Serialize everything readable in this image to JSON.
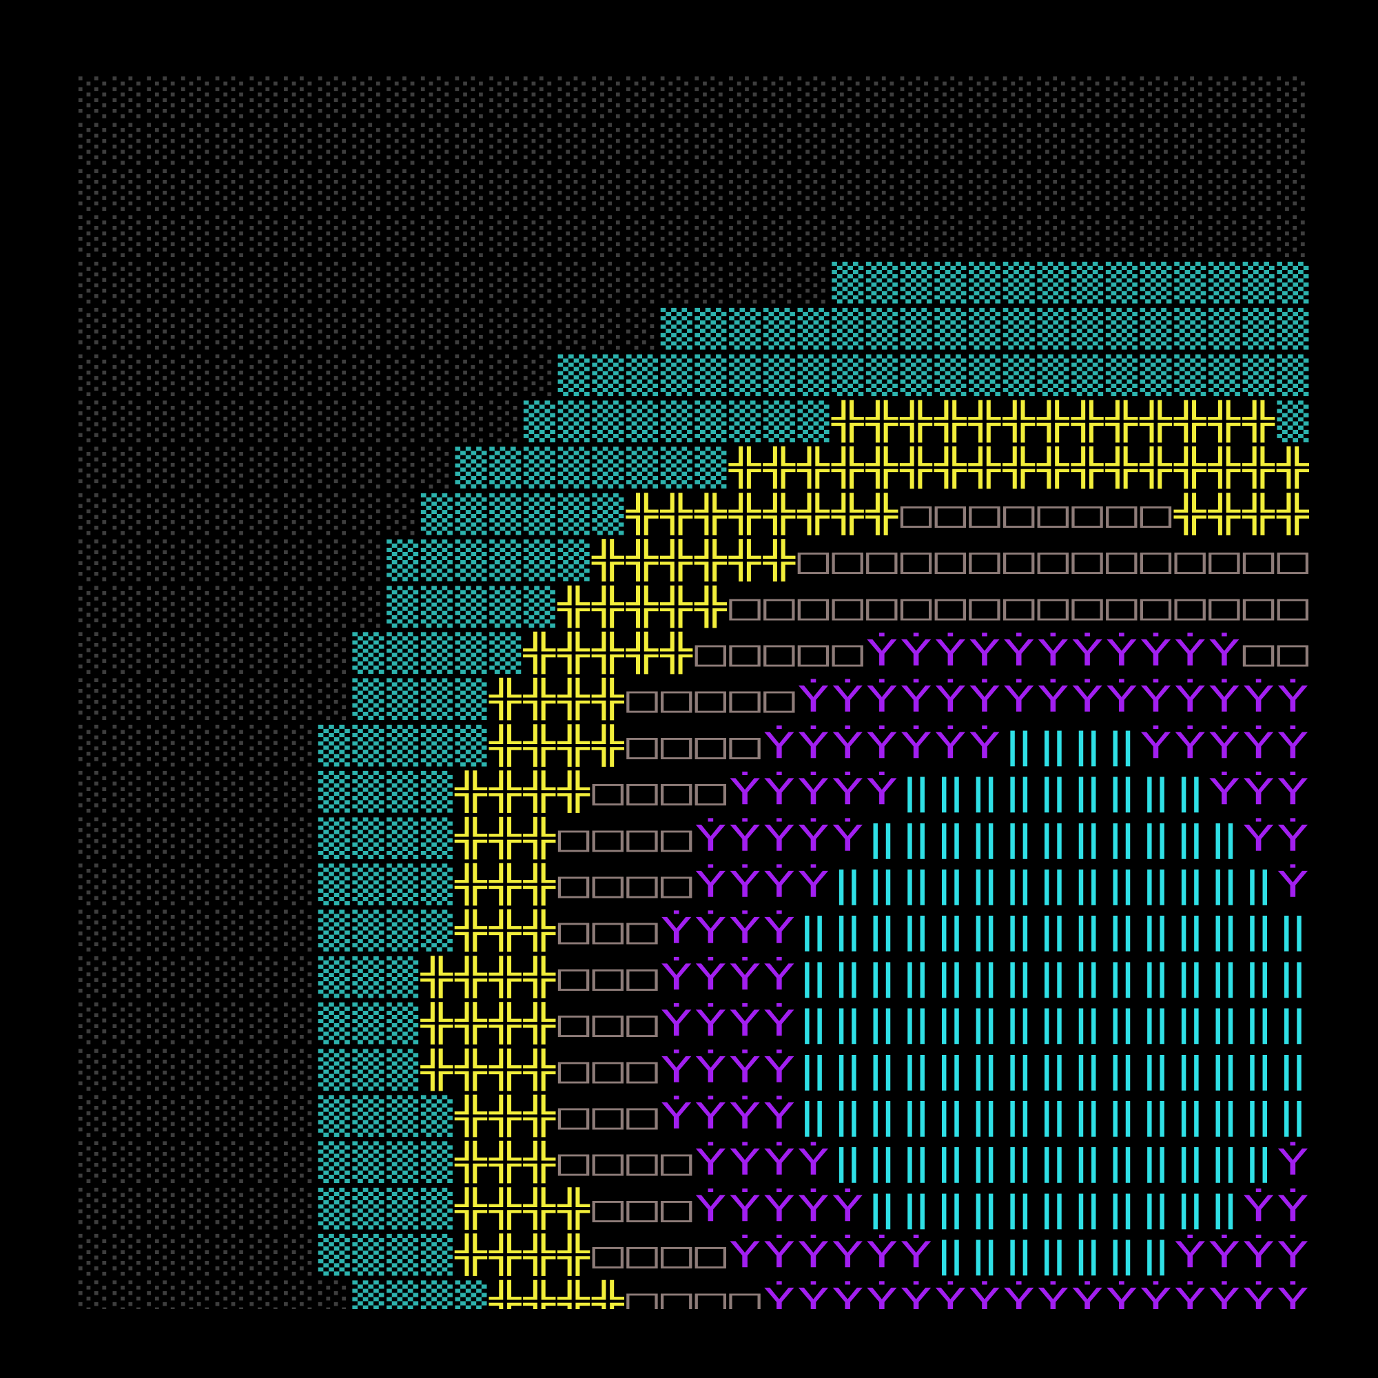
{
  "map": {
    "rows": [
      "░░░░░░░░░░░░░░░░░░░░░░░░░░░░░░░░░░░░",
      "░░░░░░░░░░░░░░░░░░░░░░░░░░░░░░░░░░░░",
      "░░░░░░░░░░░░░░░░░░░░░░░░░░░░░░░░░░░░",
      "░░░░░░░░░░░░░░░░░░░░░░░░░░░░░░░░░░░░",
      "░░░░░░░░░░░░░░░░░░░░░░▒▒▒▒▒▒▒▒▒▒▒▒▒▒",
      "░░░░░░░░░░░░░░░░░▒▒▒▒▒▒▒▒▒▒▒▒▒▒▒▒▒▒▒",
      "░░░░░░░░░░░░░░▒▒▒▒▒▒▒▒▒▒▒▒▒▒▒▒▒▒▒▒▒▒",
      "░░░░░░░░░░░░░▒▒▒▒▒▒▒▒▒╬╬╬╬╬╬╬╬╬╬╬╬╬▒",
      "░░░░░░░░░░░▒▒▒▒▒▒▒▒╬╬╬╬╬╬╬╬╬╬╬╬╬╬╬╬╬",
      "░░░░░░░░░░▒▒▒▒▒▒╬╬╬╬╬╬╬╬□□□□□□□□╬╬╬╬",
      "░░░░░░░░░▒▒▒▒▒▒╬╬╬╬╬╬□□□□□□□□□□□□□□□",
      "░░░░░░░░░▒▒▒▒▒╬╬╬╬╬□□□□□□□□□□□□□□□□□",
      "░░░░░░░░▒▒▒▒▒╬╬╬╬╬□□□□□ẎẎẎẎẎẎẎẎẎẎẎ□□",
      "░░░░░░░░▒▒▒▒╬╬╬╬□□□□□ẎẎẎẎẎẎẎẎẎẎẎẎẎẎẎ",
      "░░░░░░░▒▒▒▒▒╬╬╬╬□□□□ẎẎẎẎẎẎẎ‖‖‖‖ẎẎẎẎẎ",
      "░░░░░░░▒▒▒▒╬╬╬╬□□□□ẎẎẎẎẎ‖‖‖‖‖‖‖‖‖ẎẎẎ",
      "░░░░░░░▒▒▒▒╬╬╬□□□□ẎẎẎẎẎ‖‖‖‖‖‖‖‖‖‖‖ẎẎ",
      "░░░░░░░▒▒▒▒╬╬╬□□□□ẎẎẎẎ‖‖‖‖‖‖‖‖‖‖‖‖‖Ẏ",
      "░░░░░░░▒▒▒▒╬╬╬□□□ẎẎẎẎ‖‖‖‖‖‖‖‖‖‖‖‖‖‖‖",
      "░░░░░░░▒▒▒╬╬╬╬□□□ẎẎẎẎ‖‖‖‖‖‖‖‖‖‖‖‖‖‖‖",
      "░░░░░░░▒▒▒╬╬╬╬□□□ẎẎẎẎ‖‖‖‖‖‖‖‖‖‖‖‖‖‖‖",
      "░░░░░░░▒▒▒╬╬╬╬□□□ẎẎẎẎ‖‖‖‖‖‖‖‖‖‖‖‖‖‖‖",
      "░░░░░░░▒▒▒▒╬╬╬□□□ẎẎẎẎ‖‖‖‖‖‖‖‖‖‖‖‖‖‖‖",
      "░░░░░░░▒▒▒▒╬╬╬□□□□ẎẎẎẎ‖‖‖‖‖‖‖‖‖‖‖‖‖Ẏ",
      "░░░░░░░▒▒▒▒╬╬╬╬□□□ẎẎẎẎẎ‖‖‖‖‖‖‖‖‖‖‖ẎẎ",
      "░░░░░░░▒▒▒▒╬╬╬╬□□□□ẎẎẎẎẎẎ‖‖‖‖‖‖‖ẎẎẎẎ",
      "░░░░░░░░▒▒▒▒╬╬╬╬□□□□ẎẎẎẎẎẎẎẎẎẎẎẎẎẎẎẎ"
    ],
    "palette": {
      "░": "#3e3e3e",
      "▒": "#2db3ae",
      "╬": "#f2ee3a",
      "□": "#8e7c79",
      "Ẏ": "#a21ff0",
      "‖": "#2fe0e6"
    }
  }
}
